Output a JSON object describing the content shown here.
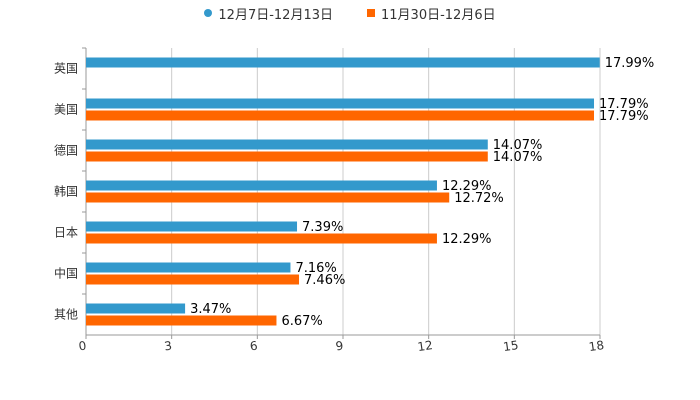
{
  "chart_data": {
    "type": "bar",
    "orientation": "horizontal",
    "categories": [
      "英国",
      "美国",
      "德国",
      "韩国",
      "日本",
      "中国",
      "其他"
    ],
    "series": [
      {
        "name": "12月7日-12月13日",
        "color": "#3399cc",
        "values": [
          17.99,
          17.79,
          14.07,
          12.29,
          7.39,
          7.16,
          3.47
        ],
        "labels": [
          "17.99%",
          "17.79%",
          "14.07%",
          "12.29%",
          "7.39%",
          "7.16%",
          "3.47%"
        ]
      },
      {
        "name": "11月30日-12月6日",
        "color": "#ff6600",
        "values": [
          null,
          17.79,
          14.07,
          12.72,
          12.29,
          7.46,
          6.67
        ],
        "labels": [
          "",
          "17.79%",
          "14.07%",
          "12.72%",
          "12.29%",
          "7.46%",
          "6.67%"
        ]
      }
    ],
    "xlim": [
      0,
      18
    ],
    "xticks": [
      0,
      3,
      6,
      9,
      12,
      15,
      18
    ],
    "xtick_labels": [
      "0",
      "3",
      "6",
      "9",
      "12",
      "15",
      "18"
    ],
    "grid": true,
    "legend_position": "top-center",
    "title": "",
    "xlabel": "",
    "ylabel": ""
  }
}
